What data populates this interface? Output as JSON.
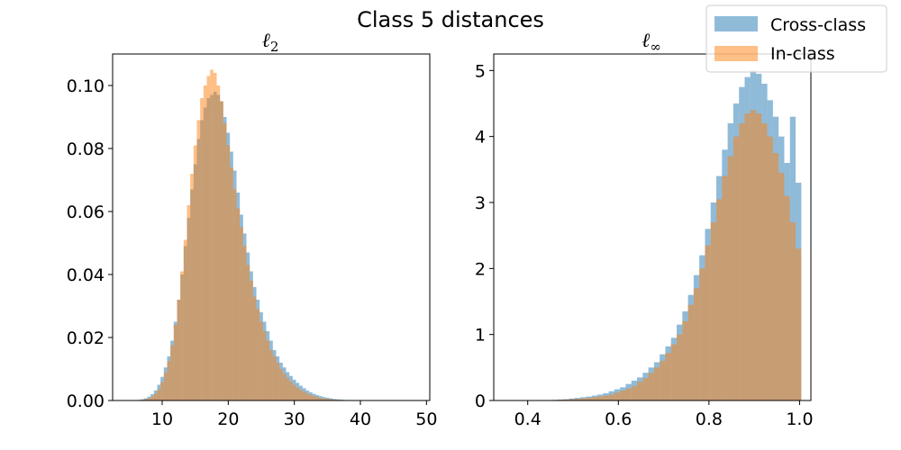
{
  "chart_data": {
    "title": "Class 5 distances",
    "legend": {
      "placement": "top-right",
      "entries": [
        {
          "name": "Cross-class",
          "color": "#1f77b4",
          "alpha": 0.5
        },
        {
          "name": "In-class",
          "color": "#ff7f0e",
          "alpha": 0.5
        }
      ]
    },
    "panels": [
      {
        "type": "histogram",
        "title": "ℓ",
        "title_sub": "2",
        "xlim": [
          2.5,
          50.5
        ],
        "ylim": [
          0,
          0.11
        ],
        "xticks": [
          10,
          20,
          30,
          40,
          50
        ],
        "xtick_labels": [
          "10",
          "20",
          "30",
          "40",
          "50"
        ],
        "yticks": [
          0.0,
          0.02,
          0.04,
          0.06,
          0.08,
          0.1
        ],
        "ytick_labels": [
          "0.00",
          "0.02",
          "0.04",
          "0.06",
          "0.08",
          "0.10"
        ],
        "series": [
          {
            "name": "Cross-class",
            "x": [
              6,
              6.5,
              7,
              7.5,
              8,
              8.5,
              9,
              9.5,
              10,
              10.5,
              11,
              11.5,
              12,
              12.5,
              13,
              13.5,
              14,
              14.5,
              15,
              15.5,
              16,
              16.5,
              17,
              17.5,
              18,
              18.5,
              19,
              19.5,
              20,
              20.5,
              21,
              21.5,
              22,
              22.5,
              23,
              23.5,
              24,
              24.5,
              25,
              25.5,
              26,
              26.5,
              27,
              27.5,
              28,
              28.5,
              29,
              29.5,
              30,
              30.5,
              31,
              31.5,
              32,
              32.5,
              33,
              33.5,
              34,
              34.5,
              35,
              35.5,
              36,
              36.5,
              37,
              37.5,
              38,
              38.5,
              39,
              39.5,
              40
            ],
            "values": [
              0.0001,
              0.0002,
              0.0004,
              0.0007,
              0.0012,
              0.002,
              0.0032,
              0.005,
              0.0075,
              0.0105,
              0.014,
              0.019,
              0.025,
              0.032,
              0.04,
              0.049,
              0.058,
              0.067,
              0.075,
              0.083,
              0.089,
              0.093,
              0.096,
              0.097,
              0.098,
              0.097,
              0.095,
              0.09,
              0.085,
              0.079,
              0.073,
              0.066,
              0.059,
              0.053,
              0.047,
              0.041,
              0.036,
              0.032,
              0.028,
              0.025,
              0.022,
              0.019,
              0.016,
              0.014,
              0.012,
              0.0105,
              0.009,
              0.0078,
              0.0066,
              0.0056,
              0.0047,
              0.0039,
              0.0032,
              0.0026,
              0.0021,
              0.0017,
              0.0014,
              0.0011,
              0.0009,
              0.0007,
              0.0005,
              0.0004,
              0.0003,
              0.0002,
              0.00015,
              0.0001,
              8e-05,
              5e-05,
              3e-05
            ]
          },
          {
            "name": "In-class",
            "x": [
              6,
              6.5,
              7,
              7.5,
              8,
              8.5,
              9,
              9.5,
              10,
              10.5,
              11,
              11.5,
              12,
              12.5,
              13,
              13.5,
              14,
              14.5,
              15,
              15.5,
              16,
              16.5,
              17,
              17.5,
              18,
              18.5,
              19,
              19.5,
              20,
              20.5,
              21,
              21.5,
              22,
              22.5,
              23,
              23.5,
              24,
              24.5,
              25,
              25.5,
              26,
              26.5,
              27,
              27.5,
              28,
              28.5,
              29,
              29.5,
              30,
              30.5,
              31,
              31.5,
              32,
              32.5,
              33,
              33.5,
              34,
              34.5,
              35,
              35.5,
              36,
              36.5,
              37,
              37.5,
              38,
              38.5,
              39,
              39.5,
              40
            ],
            "values": [
              0,
              0.0001,
              0.0002,
              0.0004,
              0.0007,
              0.0013,
              0.0022,
              0.0036,
              0.0058,
              0.0088,
              0.0125,
              0.0175,
              0.024,
              0.032,
              0.041,
              0.051,
              0.062,
              0.072,
              0.081,
              0.089,
              0.096,
              0.1,
              0.103,
              0.105,
              0.104,
              0.1,
              0.095,
              0.088,
              0.081,
              0.074,
              0.067,
              0.061,
              0.055,
              0.049,
              0.043,
              0.038,
              0.033,
              0.029,
              0.025,
              0.022,
              0.019,
              0.016,
              0.014,
              0.012,
              0.01,
              0.0085,
              0.0072,
              0.006,
              0.005,
              0.0041,
              0.0034,
              0.0028,
              0.0022,
              0.0018,
              0.0014,
              0.0011,
              0.0008,
              0.0006,
              0.0005,
              0.0004,
              0.0003,
              0.0002,
              0.00015,
              0.0001,
              7e-05,
              5e-05,
              3e-05,
              2e-05,
              1e-05
            ]
          }
        ]
      },
      {
        "type": "histogram",
        "title": "ℓ",
        "title_sub": "∞",
        "xlim": [
          0.325,
          1.025
        ],
        "ylim": [
          0,
          5.25
        ],
        "xticks": [
          0.4,
          0.6,
          0.8,
          1.0
        ],
        "xtick_labels": [
          "0.4",
          "0.6",
          "0.8",
          "1.0"
        ],
        "yticks": [
          0,
          1,
          2,
          3,
          4,
          5
        ],
        "ytick_labels": [
          "0",
          "1",
          "2",
          "3",
          "4",
          "5"
        ],
        "series": [
          {
            "name": "Cross-class",
            "x": [
              0.36,
              0.3725,
              0.385,
              0.3975,
              0.41,
              0.4225,
              0.435,
              0.4475,
              0.46,
              0.4725,
              0.485,
              0.4975,
              0.51,
              0.5225,
              0.535,
              0.5475,
              0.56,
              0.5725,
              0.585,
              0.5975,
              0.61,
              0.6225,
              0.635,
              0.6475,
              0.66,
              0.6725,
              0.685,
              0.6975,
              0.71,
              0.7225,
              0.735,
              0.7475,
              0.76,
              0.7725,
              0.785,
              0.7975,
              0.81,
              0.8225,
              0.835,
              0.8475,
              0.86,
              0.8725,
              0.885,
              0.8975,
              0.91,
              0.9225,
              0.935,
              0.9475,
              0.96,
              0.9725,
              0.985,
              0.9975
            ],
            "values": [
              0,
              0,
              0,
              0,
              0,
              0,
              0,
              0,
              0.01,
              0.015,
              0.02,
              0.03,
              0.04,
              0.05,
              0.06,
              0.075,
              0.09,
              0.11,
              0.14,
              0.17,
              0.2,
              0.25,
              0.3,
              0.35,
              0.42,
              0.5,
              0.58,
              0.7,
              0.82,
              0.95,
              1.15,
              1.35,
              1.6,
              1.9,
              2.2,
              2.6,
              3.0,
              3.4,
              3.8,
              4.2,
              4.5,
              4.75,
              4.9,
              5.0,
              4.95,
              4.8,
              4.55,
              4.3,
              4.0,
              3.6,
              4.3,
              3.3
            ]
          },
          {
            "name": "In-class",
            "x": [
              0.36,
              0.3725,
              0.385,
              0.3975,
              0.41,
              0.4225,
              0.435,
              0.4475,
              0.46,
              0.4725,
              0.485,
              0.4975,
              0.51,
              0.5225,
              0.535,
              0.5475,
              0.56,
              0.5725,
              0.585,
              0.5975,
              0.61,
              0.6225,
              0.635,
              0.6475,
              0.66,
              0.6725,
              0.685,
              0.6975,
              0.71,
              0.7225,
              0.735,
              0.7475,
              0.76,
              0.7725,
              0.785,
              0.7975,
              0.81,
              0.8225,
              0.835,
              0.8475,
              0.86,
              0.8725,
              0.885,
              0.8975,
              0.91,
              0.9225,
              0.935,
              0.9475,
              0.96,
              0.9725,
              0.985,
              0.9975
            ],
            "values": [
              0,
              0,
              0,
              0,
              0,
              0,
              0,
              0,
              0,
              0.01,
              0.015,
              0.02,
              0.025,
              0.03,
              0.04,
              0.05,
              0.06,
              0.075,
              0.09,
              0.12,
              0.15,
              0.18,
              0.22,
              0.28,
              0.34,
              0.42,
              0.5,
              0.6,
              0.72,
              0.85,
              1.0,
              1.2,
              1.45,
              1.7,
              2.0,
              2.35,
              2.7,
              3.05,
              3.4,
              3.7,
              4.0,
              4.2,
              4.35,
              4.4,
              4.35,
              4.2,
              4.0,
              3.75,
              3.45,
              3.1,
              2.7,
              2.3
            ]
          }
        ]
      }
    ]
  }
}
